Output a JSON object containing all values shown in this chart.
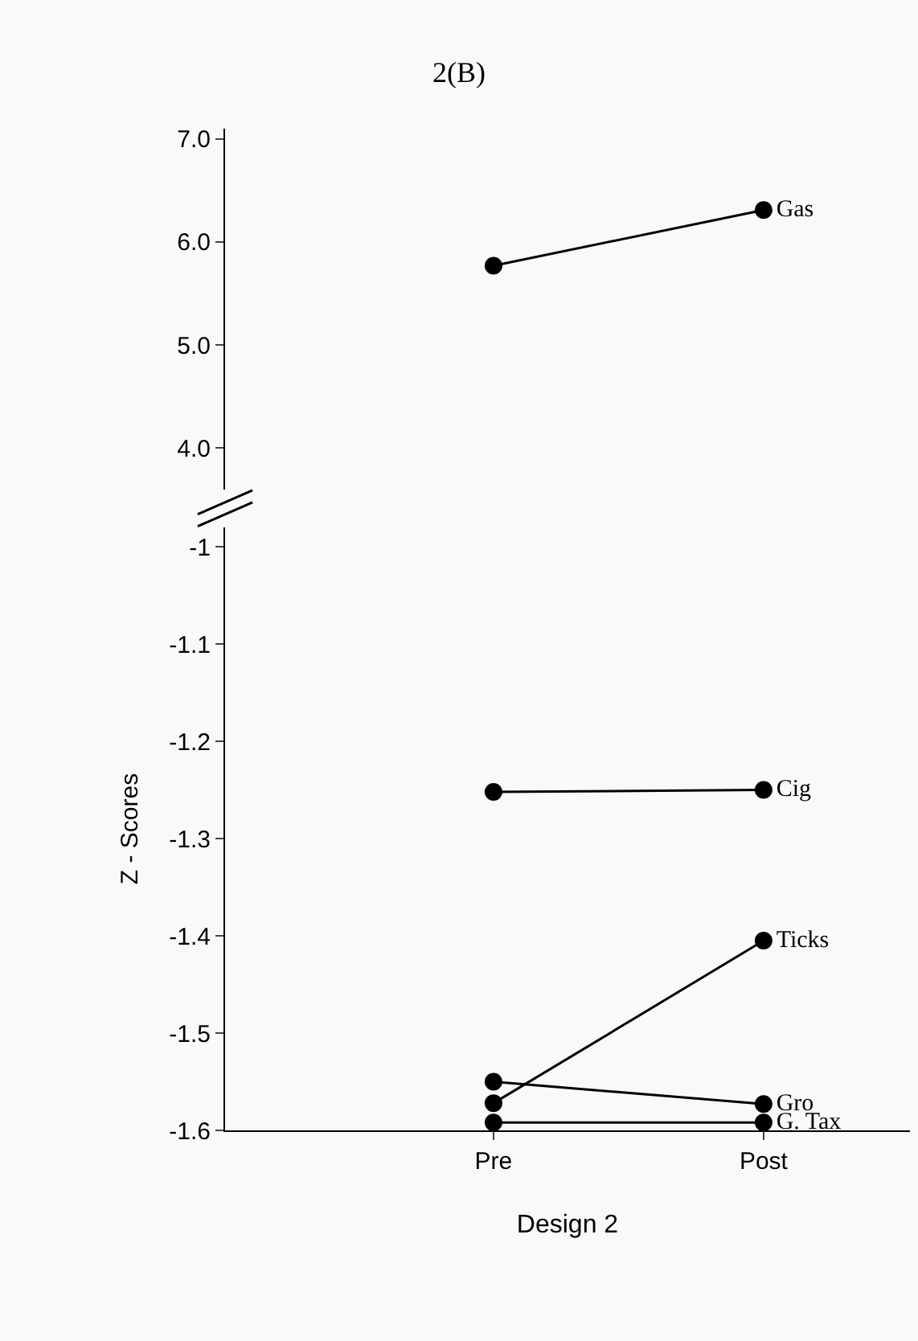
{
  "chart_data": [
    {
      "type": "line",
      "title": "2(B)",
      "categories": [
        "Pre",
        "Post"
      ],
      "ylim": [
        3.6,
        7.1
      ],
      "yticks": [
        {
          "value": 4,
          "label": "4.0"
        },
        {
          "value": 5,
          "label": "5.0"
        },
        {
          "value": 6,
          "label": "6.0"
        },
        {
          "value": 7,
          "label": "7.0"
        }
      ],
      "tick_labels": "y",
      "marker": "circle",
      "grid": false,
      "series": [
        {
          "name": "Gas",
          "color": "#000000",
          "values": [
            5.77,
            6.31
          ]
        }
      ]
    },
    {
      "type": "line",
      "xlabel": "Design 2",
      "ylabel": "Z - Scores",
      "categories": [
        "Pre",
        "Post"
      ],
      "ylim": [
        -1.6,
        -0.98
      ],
      "yticks": [
        -1,
        -1.1,
        -1.2,
        -1.3,
        -1.4,
        -1.5,
        -1.6
      ],
      "marker": "circle",
      "grid": false,
      "series": [
        {
          "name": "Cig",
          "color": "#000000",
          "values": [
            -1.252,
            -1.25
          ]
        },
        {
          "name": "Ticks",
          "color": "#000000",
          "values": [
            -1.572,
            -1.405
          ]
        },
        {
          "name": "Gro",
          "color": "#000000",
          "values": [
            -1.55,
            -1.573
          ]
        },
        {
          "name": "G. Tax",
          "color": "#000000",
          "values": [
            -1.592,
            -1.592
          ]
        }
      ]
    }
  ]
}
